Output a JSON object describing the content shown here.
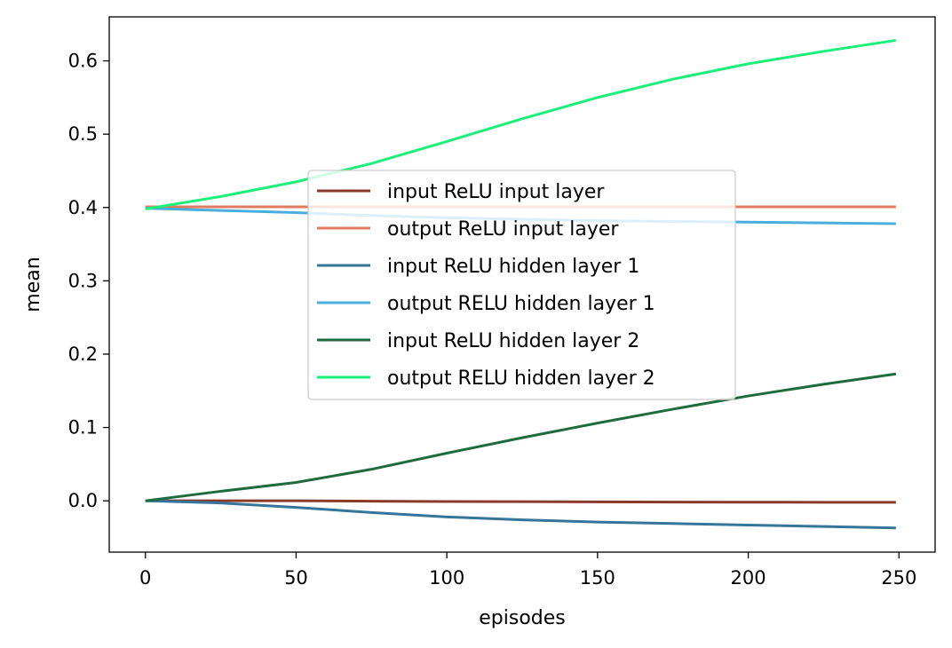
{
  "chart_data": {
    "type": "line",
    "xlabel": "episodes",
    "ylabel": "mean",
    "xlim": [
      -12,
      262
    ],
    "ylim": [
      -0.07,
      0.66
    ],
    "xticks": [
      0,
      50,
      100,
      150,
      200,
      250
    ],
    "yticks": [
      0.0,
      0.1,
      0.2,
      0.3,
      0.4,
      0.5,
      0.6
    ],
    "xtick_labels": [
      "0",
      "50",
      "100",
      "150",
      "200",
      "250"
    ],
    "ytick_labels": [
      "0.0",
      "0.1",
      "0.2",
      "0.3",
      "0.4",
      "0.5",
      "0.6"
    ],
    "grid": false,
    "legend": "center",
    "x": [
      0,
      25,
      50,
      75,
      100,
      125,
      150,
      175,
      200,
      225,
      249
    ],
    "series": [
      {
        "name": "input ReLU input layer",
        "color": "#8B3A2A",
        "values": [
          0.0,
          0.0,
          0.0,
          -0.0005,
          -0.001,
          -0.0012,
          -0.0015,
          -0.0017,
          -0.0019,
          -0.002,
          -0.002
        ]
      },
      {
        "name": "output ReLU input layer",
        "color": "#E07B5F",
        "values": [
          0.401,
          0.401,
          0.401,
          0.401,
          0.401,
          0.401,
          0.401,
          0.401,
          0.401,
          0.401,
          0.401
        ]
      },
      {
        "name": "input ReLU hidden layer 1",
        "color": "#35759A",
        "values": [
          0.0,
          -0.003,
          -0.009,
          -0.016,
          -0.022,
          -0.026,
          -0.029,
          -0.031,
          -0.033,
          -0.035,
          -0.037
        ]
      },
      {
        "name": "output RELU hidden layer 1",
        "color": "#4AAEDD",
        "values": [
          0.399,
          0.396,
          0.393,
          0.389,
          0.386,
          0.384,
          0.382,
          0.381,
          0.38,
          0.379,
          0.378
        ]
      },
      {
        "name": "input ReLU hidden layer 2",
        "color": "#1F6B40",
        "values": [
          0.0,
          0.013,
          0.025,
          0.043,
          0.065,
          0.086,
          0.106,
          0.125,
          0.143,
          0.159,
          0.173
        ]
      },
      {
        "name": "output RELU hidden layer 2",
        "color": "#1AF07A",
        "values": [
          0.398,
          0.415,
          0.435,
          0.46,
          0.49,
          0.521,
          0.55,
          0.575,
          0.596,
          0.613,
          0.628
        ]
      }
    ]
  }
}
